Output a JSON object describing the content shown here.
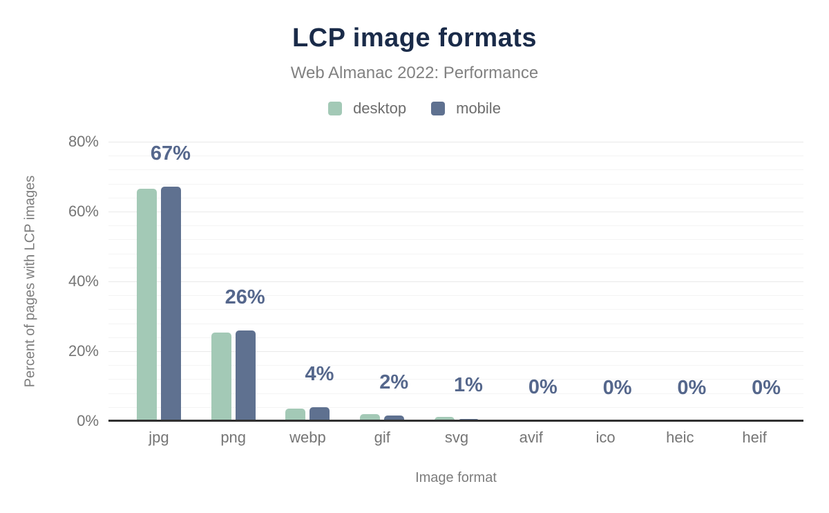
{
  "header": {
    "title": "LCP image formats",
    "subtitle": "Web Almanac 2022: Performance"
  },
  "legend": {
    "items": [
      {
        "label": "desktop",
        "color": "#a3c9b6"
      },
      {
        "label": "mobile",
        "color": "#5f7190"
      }
    ]
  },
  "chart_data": {
    "type": "bar",
    "title": "LCP image formats",
    "subtitle": "Web Almanac 2022: Performance",
    "xlabel": "Image format",
    "ylabel": "Percent of pages with LCP images",
    "categories": [
      "jpg",
      "png",
      "webp",
      "gif",
      "svg",
      "avif",
      "ico",
      "heic",
      "heif"
    ],
    "series": [
      {
        "name": "desktop",
        "color": "#a3c9b6",
        "values": [
          66.6,
          25.3,
          3.6,
          1.9,
          1.2,
          0.2,
          0.1,
          0,
          0
        ]
      },
      {
        "name": "mobile",
        "color": "#5f7190",
        "values": [
          67.2,
          25.9,
          3.9,
          1.6,
          0.7,
          0.2,
          0.1,
          0,
          0
        ]
      }
    ],
    "data_labels": [
      "67%",
      "26%",
      "4%",
      "2%",
      "1%",
      "0%",
      "0%",
      "0%",
      "0%"
    ],
    "y_ticks": [
      {
        "value": 0,
        "label": "0%"
      },
      {
        "value": 20,
        "label": "20%"
      },
      {
        "value": 40,
        "label": "40%"
      },
      {
        "value": 60,
        "label": "60%"
      },
      {
        "value": 80,
        "label": "80%"
      }
    ],
    "ylim": [
      0,
      80
    ],
    "minor_grid_step": 4,
    "grid": true,
    "legend_position": "top",
    "colors": {
      "title": "#1a2b49",
      "subtitle": "#818181",
      "tick_text": "#757575",
      "data_label": "#55678c",
      "axis_line": "#303030",
      "major_grid": "#e9e9e9",
      "minor_grid": "#f4f4f4"
    }
  }
}
